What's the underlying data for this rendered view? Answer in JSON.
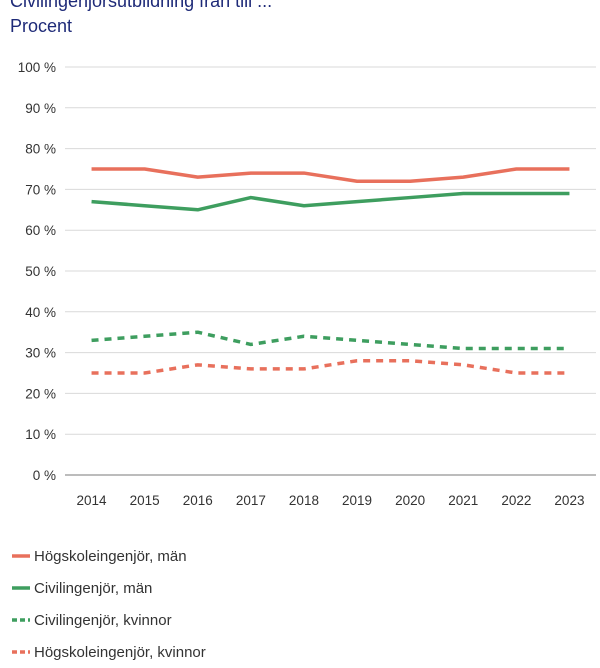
{
  "chart_data": {
    "type": "line",
    "title": "Civilingenjörsutbildning från till ...",
    "subtitle": "Procent",
    "categories": [
      "2014",
      "2015",
      "2016",
      "2017",
      "2018",
      "2019",
      "2020",
      "2021",
      "2022",
      "2023"
    ],
    "y_ticks": [
      "0 %",
      "10 %",
      "20 %",
      "30 %",
      "40 %",
      "50 %",
      "60 %",
      "70 %",
      "80 %",
      "90 %",
      "100 %"
    ],
    "ylim": [
      0,
      100
    ],
    "grid": true,
    "legend_placement": "bottom",
    "series": [
      {
        "name": "Högskoleingenjör, män",
        "color": "#e8705c",
        "dashed": false,
        "values": [
          75,
          75,
          73,
          74,
          74,
          72,
          72,
          73,
          75,
          75
        ]
      },
      {
        "name": "Civilingenjör, män",
        "color": "#3e9e5f",
        "dashed": false,
        "values": [
          67,
          66,
          65,
          68,
          66,
          67,
          68,
          69,
          69,
          69
        ]
      },
      {
        "name": "Civilingenjör, kvinnor",
        "color": "#3e9e5f",
        "dashed": true,
        "values": [
          33,
          34,
          35,
          32,
          34,
          33,
          32,
          31,
          31,
          31
        ]
      },
      {
        "name": "Högskoleingenjör, kvinnor",
        "color": "#e8705c",
        "dashed": true,
        "values": [
          25,
          25,
          27,
          26,
          26,
          28,
          28,
          27,
          25,
          25
        ]
      }
    ]
  }
}
